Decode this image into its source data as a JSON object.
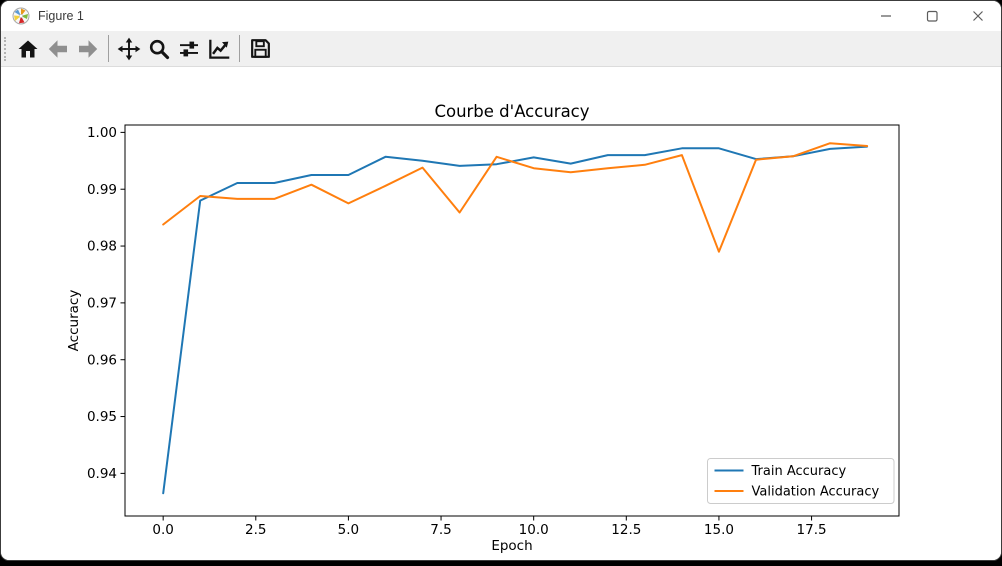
{
  "window": {
    "title": "Figure 1",
    "controls": {
      "minimize": "minimize",
      "maximize": "maximize",
      "close": "close"
    }
  },
  "toolbar": {
    "buttons": [
      {
        "id": "home",
        "icon": "home-icon",
        "enabled": true
      },
      {
        "id": "back",
        "icon": "back-arrow-icon",
        "enabled": false
      },
      {
        "id": "forward",
        "icon": "forward-arrow-icon",
        "enabled": false
      },
      {
        "id": "pan",
        "icon": "pan-move-icon",
        "enabled": true
      },
      {
        "id": "zoom",
        "icon": "zoom-magnifier-icon",
        "enabled": true
      },
      {
        "id": "configure-subplots",
        "icon": "sliders-icon",
        "enabled": true
      },
      {
        "id": "edit-axes",
        "icon": "line-chart-icon",
        "enabled": true
      },
      {
        "id": "save",
        "icon": "save-floppy-icon",
        "enabled": true
      }
    ]
  },
  "chart_data": {
    "type": "line",
    "title": "Courbe d'Accuracy",
    "xlabel": "Epoch",
    "ylabel": "Accuracy",
    "x": [
      0,
      1,
      2,
      3,
      4,
      5,
      6,
      7,
      8,
      9,
      10,
      11,
      12,
      13,
      14,
      15,
      16,
      17,
      18,
      19
    ],
    "series": [
      {
        "name": "Train Accuracy",
        "color": "#1f77b4",
        "values": [
          0.9365,
          0.988,
          0.9911,
          0.9911,
          0.9925,
          0.9925,
          0.9957,
          0.995,
          0.9941,
          0.9944,
          0.9956,
          0.9945,
          0.996,
          0.996,
          0.9972,
          0.9972,
          0.9953,
          0.9958,
          0.9971,
          0.9975
        ]
      },
      {
        "name": "Validation Accuracy",
        "color": "#ff7f0e",
        "values": [
          0.9838,
          0.9888,
          0.9883,
          0.9883,
          0.9908,
          0.9875,
          0.9906,
          0.9938,
          0.9859,
          0.9957,
          0.9937,
          0.993,
          0.9937,
          0.9943,
          0.996,
          0.979,
          0.9952,
          0.9958,
          0.9981,
          0.9976
        ]
      }
    ],
    "xlim": [
      -1.03,
      19.86
    ],
    "ylim": [
      0.9325,
      1.0013
    ],
    "xticks": [
      0,
      2.5,
      5,
      7.5,
      10,
      12.5,
      15,
      17.5
    ],
    "xtick_labels": [
      "0.0",
      "2.5",
      "5.0",
      "7.5",
      "10.0",
      "12.5",
      "15.0",
      "17.5"
    ],
    "yticks": [
      0.94,
      0.95,
      0.96,
      0.97,
      0.98,
      0.99,
      1.0
    ],
    "ytick_labels": [
      "0.94",
      "0.95",
      "0.96",
      "0.97",
      "0.98",
      "0.99",
      "1.00"
    ],
    "grid": false,
    "legend": {
      "position": "lower right"
    }
  }
}
